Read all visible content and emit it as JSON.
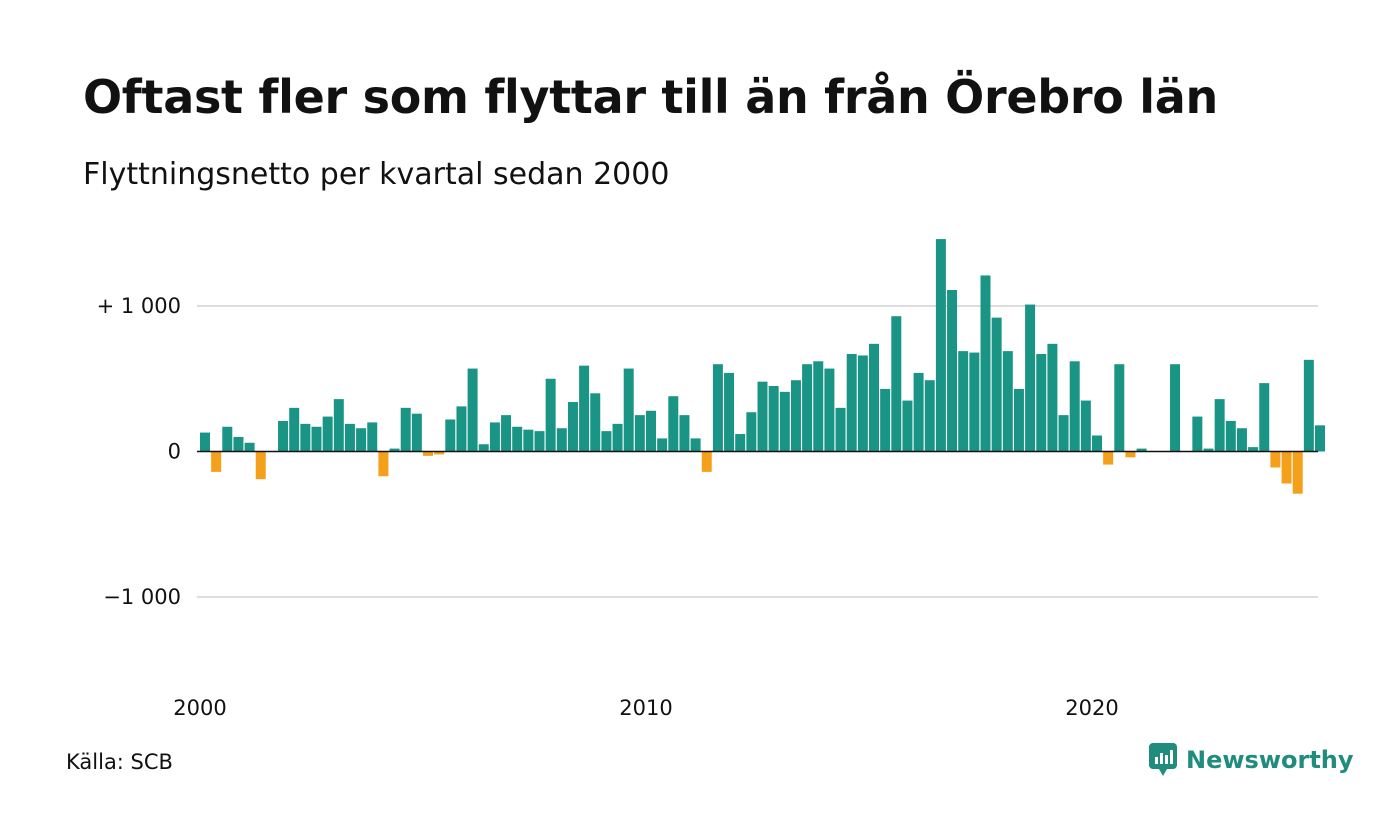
{
  "title": "Oftast fler som flyttar till än från Örebro län",
  "subtitle": "Flyttningsnetto per kvartal sedan 2000",
  "source": "Källa: SCB",
  "brand": {
    "name": "Newsworthy",
    "icon": "newsworthy-logo-icon"
  },
  "colors": {
    "positive": "#1a9585",
    "negative": "#f5a01a",
    "grid": "#dddddd",
    "zero_line": "#111111",
    "brand": "#1f8c7e"
  },
  "chart_data": {
    "type": "bar",
    "title": "Oftast fler som flyttar till än från Örebro län",
    "subtitle": "Flyttningsnetto per kvartal sedan 2000",
    "xlabel": "",
    "ylabel": "",
    "x_start": "2000 Q1",
    "frequency": "quarterly",
    "ylim": [
      -1500,
      1500
    ],
    "grid": "horizontal",
    "yticks": [
      {
        "value": 1000,
        "label": "+ 1 000"
      },
      {
        "value": 0,
        "label": "0"
      },
      {
        "value": -1000,
        "label": "−1 000"
      }
    ],
    "xticks": [
      {
        "year": 2000,
        "label": "2000"
      },
      {
        "year": 2010,
        "label": "2010"
      },
      {
        "year": 2020,
        "label": "2020"
      }
    ],
    "values": [
      130,
      -140,
      170,
      100,
      60,
      -190,
      0,
      210,
      300,
      190,
      170,
      240,
      360,
      190,
      160,
      200,
      -170,
      20,
      300,
      260,
      -30,
      -20,
      220,
      310,
      570,
      50,
      200,
      250,
      170,
      150,
      140,
      500,
      160,
      340,
      590,
      400,
      140,
      190,
      570,
      250,
      280,
      90,
      380,
      250,
      90,
      -140,
      600,
      540,
      120,
      270,
      480,
      450,
      410,
      490,
      600,
      620,
      570,
      300,
      670,
      660,
      740,
      430,
      930,
      350,
      540,
      490,
      1460,
      1110,
      690,
      680,
      1210,
      920,
      690,
      430,
      1010,
      670,
      740,
      250,
      620,
      350,
      110,
      -90,
      600,
      -40,
      20,
      0,
      0,
      600,
      0,
      240,
      20,
      360,
      210,
      160,
      30,
      470,
      -110,
      -220,
      -290,
      630,
      180
    ]
  }
}
